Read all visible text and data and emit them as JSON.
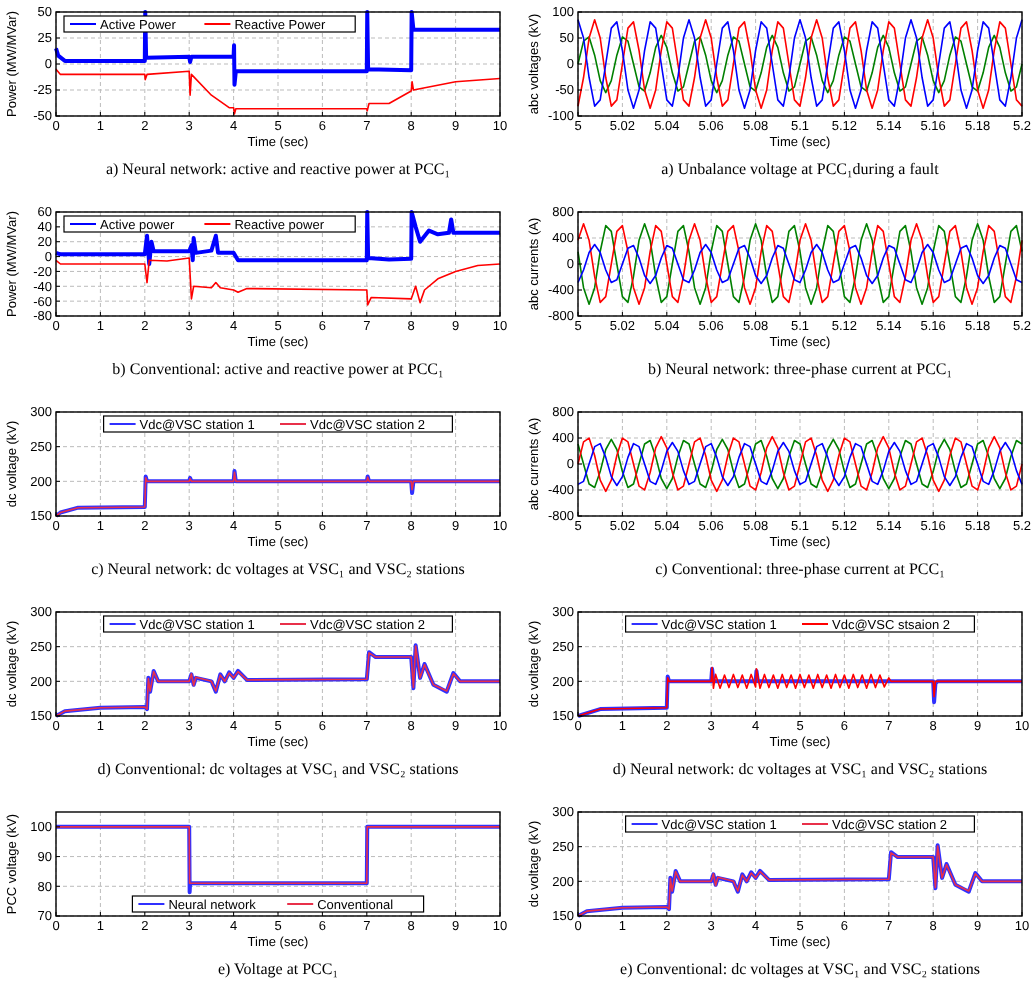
{
  "chart_data": [
    {
      "type": "line",
      "title": "a)    Neural network: active and reactive power at PCC₁",
      "xlabel": "Time (sec)",
      "ylabel": "Power (MW/MVar)",
      "xlim": [
        0,
        10
      ],
      "xticks": [
        0,
        1,
        2,
        3,
        4,
        5,
        6,
        7,
        8,
        9,
        10
      ],
      "ylim": [
        -50,
        50
      ],
      "yticks": [
        -50,
        -25,
        0,
        25,
        50
      ],
      "grid": true,
      "legend": "top left",
      "series": [
        {
          "name": "Active Power",
          "color": "#0000ff",
          "x": [
            0,
            0.05,
            0.2,
            2,
            2.01,
            2.03,
            3,
            3.02,
            3.05,
            4,
            4.01,
            4.02,
            4.05,
            7,
            7.01,
            7.03,
            8,
            8.01,
            8.05,
            10
          ],
          "values": [
            15,
            8,
            3,
            3,
            50,
            6,
            7,
            2,
            7,
            7,
            18,
            -20,
            -7,
            -7,
            50,
            -5,
            -6,
            50,
            33,
            33
          ]
        },
        {
          "name": "Reactive Power",
          "color": "#ff0000",
          "x": [
            0,
            0.1,
            2,
            2.01,
            2.05,
            3,
            3.02,
            3.05,
            3.5,
            3.9,
            4,
            4.02,
            4.05,
            7,
            7.01,
            7.05,
            7.5,
            8,
            8.02,
            8.05,
            9,
            10
          ],
          "values": [
            -5,
            -10,
            -10,
            -15,
            -10,
            -7,
            -30,
            -10,
            -30,
            -42,
            -42,
            -48,
            -43,
            -43,
            -45,
            -38,
            -38,
            -26,
            -17,
            -25,
            -17,
            -14
          ]
        }
      ]
    },
    {
      "type": "line",
      "title": "a)    Unbalance voltage at PCC₁during a fault",
      "xlabel": "Time (sec)",
      "ylabel": "abc voltages (kV)",
      "xlim": [
        5,
        5.2
      ],
      "xticks": [
        5,
        5.02,
        5.04,
        5.06,
        5.08,
        5.1,
        5.12,
        5.14,
        5.16,
        5.18,
        5.2
      ],
      "ylim": [
        -100,
        100
      ],
      "yticks": [
        -100,
        -50,
        0,
        50,
        100
      ],
      "grid": true,
      "x": [
        5,
        5.0025,
        5.005,
        5.0075,
        5.01,
        5.0125,
        5.015,
        5.0175,
        5.02,
        5.0225,
        5.025,
        5.0275,
        5.03,
        5.0325,
        5.035,
        5.0375,
        5.04,
        5.0425,
        5.045,
        5.0475,
        5.05,
        5.0525,
        5.055,
        5.0575,
        5.06,
        5.0625,
        5.065,
        5.0675,
        5.07,
        5.0725,
        5.075,
        5.0775,
        5.08,
        5.0825,
        5.085,
        5.0875,
        5.09,
        5.0925,
        5.095,
        5.0975,
        5.1,
        5.1025,
        5.105,
        5.1075,
        5.11,
        5.1125,
        5.115,
        5.1175,
        5.12,
        5.1225,
        5.125,
        5.1275,
        5.13,
        5.1325,
        5.135,
        5.1375,
        5.14,
        5.1425,
        5.145,
        5.1475,
        5.15,
        5.1525,
        5.155,
        5.1575,
        5.16,
        5.1625,
        5.165,
        5.1675,
        5.17,
        5.1725,
        5.175,
        5.1775,
        5.18,
        5.1825,
        5.185,
        5.1875,
        5.19,
        5.1925,
        5.195,
        5.1975,
        5.2
      ],
      "series": [
        {
          "color": "#008000",
          "values": [
            0,
            44,
            52,
            17,
            -32,
            -55,
            -32,
            17,
            52,
            44,
            0,
            -44,
            -52,
            -17,
            32,
            55,
            32,
            -17,
            -52,
            -44,
            0,
            44,
            52,
            17,
            -32,
            -55,
            -32,
            17,
            52,
            44,
            0,
            -44,
            -52,
            -17,
            32,
            55,
            32,
            -17,
            -52,
            -44,
            0,
            44,
            52,
            17,
            -32,
            -55,
            -32,
            17,
            52,
            44,
            0,
            -44,
            -52,
            -17,
            32,
            55,
            32,
            -17,
            -52,
            -44,
            0,
            44,
            52,
            17,
            -32,
            -55,
            -32,
            17,
            52,
            44,
            0,
            -44,
            -52,
            -17,
            32,
            55,
            32,
            -17,
            -52,
            -44,
            0
          ]
        },
        {
          "color": "#ff0000",
          "values": [
            -81,
            -26,
            50,
            85,
            50,
            -26,
            -81,
            -69,
            0,
            69,
            81,
            26,
            -50,
            -85,
            -50,
            26,
            81,
            69,
            0,
            -69,
            -81,
            -26,
            50,
            85,
            50,
            -26,
            -81,
            -69,
            0,
            69,
            81,
            26,
            -50,
            -85,
            -50,
            26,
            81,
            69,
            0,
            -69,
            -81,
            -26,
            50,
            85,
            50,
            -26,
            -81,
            -69,
            0,
            69,
            81,
            26,
            -50,
            -85,
            -50,
            26,
            81,
            69,
            0,
            -69,
            -81,
            -26,
            50,
            85,
            50,
            -26,
            -81,
            -69,
            0,
            69,
            81,
            26,
            -50,
            -85,
            -50,
            26,
            81,
            69,
            0,
            -69,
            -81
          ]
        },
        {
          "color": "#0000ff",
          "values": [
            85,
            50,
            -26,
            -81,
            -69,
            0,
            69,
            81,
            26,
            -50,
            -85,
            -50,
            26,
            81,
            69,
            0,
            -69,
            -81,
            -26,
            50,
            85,
            50,
            -26,
            -81,
            -69,
            0,
            69,
            81,
            26,
            -50,
            -85,
            -50,
            26,
            81,
            69,
            0,
            -69,
            -81,
            -26,
            50,
            85,
            50,
            -26,
            -81,
            -69,
            0,
            69,
            81,
            26,
            -50,
            -85,
            -50,
            26,
            81,
            69,
            0,
            -69,
            -81,
            -26,
            50,
            85,
            50,
            -26,
            -81,
            -69,
            0,
            69,
            81,
            26,
            -50,
            -85,
            -50,
            26,
            81,
            69,
            0,
            -69,
            -81,
            -26,
            50,
            85
          ]
        }
      ]
    },
    {
      "type": "line",
      "title": "b)    Conventional: active and reactive power at PCC₁",
      "xlabel": "Time (sec)",
      "ylabel": "Power (MW/MVar)",
      "xlim": [
        0,
        10
      ],
      "xticks": [
        0,
        1,
        2,
        3,
        4,
        5,
        6,
        7,
        8,
        9,
        10
      ],
      "ylim": [
        -80,
        60
      ],
      "yticks": [
        -80,
        -60,
        -40,
        -20,
        0,
        20,
        40,
        60
      ],
      "grid": true,
      "legend": "top left",
      "series": [
        {
          "name": "Active power",
          "color": "#0000ff",
          "x": [
            0,
            0.1,
            2,
            2.05,
            2.1,
            2.15,
            2.2,
            3,
            3.05,
            3.08,
            3.1,
            3.15,
            3.5,
            3.6,
            3.65,
            4,
            4.1,
            4.2,
            7,
            7.01,
            7.03,
            7.5,
            8,
            8.01,
            8.1,
            8.2,
            8.4,
            8.6,
            8.85,
            8.9,
            8.95,
            10
          ],
          "values": [
            5,
            3,
            3,
            28,
            -10,
            20,
            7,
            7,
            15,
            -5,
            25,
            5,
            8,
            28,
            5,
            5,
            -5,
            -5,
            -5,
            60,
            -2,
            -4,
            -3,
            60,
            40,
            20,
            35,
            30,
            32,
            50,
            32,
            32
          ]
        },
        {
          "name": "Reactive power",
          "color": "#ff0000",
          "x": [
            0,
            0.1,
            2,
            2.05,
            2.1,
            2.5,
            3,
            3.05,
            3.1,
            3.5,
            3.6,
            3.7,
            4,
            4.1,
            4.3,
            7,
            7.02,
            7.1,
            8,
            8.1,
            8.2,
            8.3,
            8.6,
            9,
            9.5,
            10
          ],
          "values": [
            -5,
            -10,
            -10,
            -35,
            -5,
            -6,
            -2,
            -57,
            -40,
            -42,
            -35,
            -42,
            -45,
            -48,
            -43,
            -45,
            -65,
            -55,
            -57,
            -40,
            -62,
            -45,
            -30,
            -20,
            -12,
            -10
          ]
        }
      ]
    },
    {
      "type": "line",
      "title": "b)    Neural network: three-phase current at PCC₁",
      "xlabel": "Time (sec)",
      "ylabel": "abc currents (A)",
      "xlim": [
        5,
        5.2
      ],
      "xticks": [
        5,
        5.02,
        5.04,
        5.06,
        5.08,
        5.1,
        5.12,
        5.14,
        5.16,
        5.18,
        5.2
      ],
      "ylim": [
        -800,
        800
      ],
      "yticks": [
        -800,
        -400,
        0,
        400,
        800
      ],
      "grid": true,
      "x": [
        5,
        5.0025,
        5.005,
        5.0075,
        5.01,
        5.0125,
        5.015,
        5.0175,
        5.02,
        5.0225,
        5.025,
        5.0275,
        5.03,
        5.0325,
        5.035,
        5.0375,
        5.04,
        5.0425,
        5.045,
        5.0475,
        5.05,
        5.0525,
        5.055,
        5.0575,
        5.06,
        5.0625,
        5.065,
        5.0675,
        5.07,
        5.0725,
        5.075,
        5.0775,
        5.08,
        5.0825,
        5.085,
        5.0875,
        5.09,
        5.0925,
        5.095,
        5.0975,
        5.1,
        5.1025,
        5.105,
        5.1075,
        5.11,
        5.1125,
        5.115,
        5.1175,
        5.12,
        5.1225,
        5.125,
        5.1275,
        5.13,
        5.1325,
        5.135,
        5.1375,
        5.14,
        5.1425,
        5.145,
        5.1475,
        5.15,
        5.1525,
        5.155,
        5.1575,
        5.16,
        5.1625,
        5.165,
        5.1675,
        5.17,
        5.1725,
        5.175,
        5.1775,
        5.18,
        5.1825,
        5.185,
        5.1875,
        5.19,
        5.1925,
        5.195,
        5.1975,
        5.2
      ],
      "series": [
        {
          "color": "#008000",
          "values": [
            192,
            -365,
            -620,
            -365,
            192,
            590,
            502,
            0,
            -502,
            -590,
            -192,
            365,
            620,
            365,
            -192,
            -590,
            -502,
            0,
            502,
            590,
            192,
            -365,
            -620,
            -365,
            192,
            590,
            502,
            0,
            -502,
            -590,
            -192,
            365,
            620,
            365,
            -192,
            -590,
            -502,
            0,
            502,
            590,
            192,
            -365,
            -620,
            -365,
            192,
            590,
            502,
            0,
            -502,
            -590,
            -192,
            365,
            620,
            365,
            -192,
            -590,
            -502,
            0,
            502,
            590,
            192,
            -365,
            -620,
            -365,
            192,
            590,
            502,
            0,
            -502,
            -590,
            -192,
            365,
            620,
            365,
            -192,
            -590,
            -502,
            0,
            502,
            590,
            192
          ]
        },
        {
          "color": "#ff0000",
          "values": [
            365,
            620,
            365,
            -192,
            -590,
            -502,
            0,
            502,
            590,
            192,
            -365,
            -620,
            -365,
            192,
            590,
            502,
            0,
            -502,
            -590,
            -192,
            365,
            620,
            365,
            -192,
            -590,
            -502,
            0,
            502,
            590,
            192,
            -365,
            -620,
            -365,
            192,
            590,
            502,
            0,
            -502,
            -590,
            -192,
            365,
            620,
            365,
            -192,
            -590,
            -502,
            0,
            502,
            590,
            192,
            -365,
            -620,
            -365,
            192,
            590,
            502,
            0,
            -502,
            -590,
            -192,
            365,
            620,
            365,
            -192,
            -590,
            -502,
            0,
            502,
            590,
            192,
            -365,
            -620,
            -365,
            192,
            590,
            502,
            0,
            -502,
            -590,
            -192,
            365
          ]
        },
        {
          "color": "#0000ff",
          "values": [
            -285,
            -93,
            176,
            300,
            176,
            -93,
            -285,
            -243,
            0,
            243,
            285,
            93,
            -176,
            -300,
            -176,
            93,
            285,
            243,
            0,
            -243,
            -285,
            -93,
            176,
            300,
            176,
            -93,
            -285,
            -243,
            0,
            243,
            285,
            93,
            -176,
            -300,
            -176,
            93,
            285,
            243,
            0,
            -243,
            -285,
            -93,
            176,
            300,
            176,
            -93,
            -285,
            -243,
            0,
            243,
            285,
            93,
            -176,
            -300,
            -176,
            93,
            285,
            243,
            0,
            -243,
            -285,
            -93,
            176,
            300,
            176,
            -93,
            -285,
            -243,
            0,
            243,
            285,
            93,
            -176,
            -300,
            -176,
            93,
            285,
            243,
            0,
            -243,
            -285
          ]
        }
      ]
    },
    {
      "type": "line",
      "title": "c)    Neural network: dc voltages at VSC₁ and VSC₂ stations",
      "xlabel": "Time (sec)",
      "ylabel": "dc voltage (kV)",
      "xlim": [
        0,
        10
      ],
      "xticks": [
        0,
        1,
        2,
        3,
        4,
        5,
        6,
        7,
        8,
        9,
        10
      ],
      "ylim": [
        150,
        300
      ],
      "yticks": [
        150,
        200,
        250,
        300
      ],
      "grid": true,
      "legend": "top",
      "series": [
        {
          "name": "Vdc@VSC station 1",
          "color": "#3030ff",
          "x": [
            0,
            0.1,
            0.5,
            2,
            2.02,
            2.05,
            3,
            3.02,
            3.05,
            4,
            4.02,
            4.05,
            7,
            7.02,
            7.05,
            8,
            8.02,
            8.05,
            10
          ],
          "values": [
            150,
            155,
            162,
            163,
            207,
            200,
            200,
            205,
            200,
            200,
            215,
            200,
            200,
            207,
            200,
            200,
            183,
            200,
            200
          ]
        },
        {
          "name": "Vdc@VSC station 2",
          "color": "#e8304a",
          "x": [
            0,
            0.1,
            0.5,
            2,
            2.02,
            2.05,
            3,
            3.02,
            3.05,
            4,
            4.02,
            4.05,
            7,
            7.02,
            7.05,
            8,
            8.02,
            8.05,
            10
          ],
          "values": [
            150,
            155,
            162,
            163,
            205,
            200,
            200,
            204,
            200,
            200,
            213,
            200,
            200,
            206,
            200,
            200,
            188,
            200,
            200
          ]
        }
      ]
    },
    {
      "type": "line",
      "title": "c)    Conventional: three-phase current at PCC₁",
      "xlabel": "Time (sec)",
      "ylabel": "abc currents (A)",
      "xlim": [
        5,
        5.2
      ],
      "xticks": [
        5,
        5.02,
        5.04,
        5.06,
        5.08,
        5.1,
        5.12,
        5.14,
        5.16,
        5.18,
        5.2
      ],
      "ylim": [
        -800,
        800
      ],
      "yticks": [
        -800,
        -400,
        0,
        400,
        800
      ],
      "grid": true,
      "x": [
        5,
        5.0025,
        5.005,
        5.0075,
        5.01,
        5.0125,
        5.015,
        5.0175,
        5.02,
        5.0225,
        5.025,
        5.0275,
        5.03,
        5.0325,
        5.035,
        5.0375,
        5.04,
        5.0425,
        5.045,
        5.0475,
        5.05,
        5.0525,
        5.055,
        5.0575,
        5.06,
        5.0625,
        5.065,
        5.0675,
        5.07,
        5.0725,
        5.075,
        5.0775,
        5.08,
        5.0825,
        5.085,
        5.0875,
        5.09,
        5.0925,
        5.095,
        5.0975,
        5.1,
        5.1025,
        5.105,
        5.1075,
        5.11,
        5.1125,
        5.115,
        5.1175,
        5.12,
        5.1225,
        5.125,
        5.1275,
        5.13,
        5.1325,
        5.135,
        5.1375,
        5.14,
        5.1425,
        5.145,
        5.1475,
        5.15,
        5.1525,
        5.155,
        5.1575,
        5.16,
        5.1625,
        5.165,
        5.1675,
        5.17,
        5.1725,
        5.175,
        5.1775,
        5.18,
        5.1825,
        5.185,
        5.1875,
        5.19,
        5.1925,
        5.195,
        5.1975,
        5.2
      ],
      "series": [
        {
          "color": "#008000",
          "values": [
            307,
            0,
            -307,
            -361,
            -117,
            223,
            380,
            223,
            -117,
            -361,
            -307,
            0,
            307,
            361,
            117,
            -223,
            -380,
            -223,
            117,
            361,
            307,
            0,
            -307,
            -361,
            -117,
            223,
            380,
            223,
            -117,
            -361,
            -307,
            0,
            307,
            361,
            117,
            -223,
            -380,
            -223,
            117,
            361,
            307,
            0,
            -307,
            -361,
            -117,
            223,
            380,
            223,
            -117,
            -361,
            -307,
            0,
            307,
            361,
            117,
            -223,
            -380,
            -223,
            117,
            361,
            307,
            0,
            -307,
            -361,
            -117,
            223,
            380,
            223,
            -117,
            -361,
            -307,
            0,
            307,
            361,
            117,
            -223,
            -380,
            -223,
            117,
            361,
            307
          ]
        },
        {
          "color": "#ff0000",
          "values": [
            0,
            340,
            399,
            130,
            -247,
            -420,
            -247,
            130,
            399,
            340,
            0,
            -340,
            -399,
            -130,
            247,
            420,
            247,
            -130,
            -399,
            -340,
            0,
            340,
            399,
            130,
            -247,
            -420,
            -247,
            130,
            399,
            340,
            0,
            -340,
            -399,
            -130,
            247,
            420,
            247,
            -130,
            -399,
            -340,
            0,
            340,
            399,
            130,
            -247,
            -420,
            -247,
            130,
            399,
            340,
            0,
            -340,
            -399,
            -130,
            247,
            420,
            247,
            -130,
            -399,
            -340,
            0,
            340,
            399,
            130,
            -247,
            -420,
            -247,
            130,
            399,
            340,
            0,
            -340,
            -399,
            -130,
            247,
            420,
            247,
            -130,
            -399,
            -340,
            0
          ]
        },
        {
          "color": "#0000ff",
          "values": [
            -314,
            -267,
            0,
            267,
            314,
            102,
            -194,
            -330,
            -194,
            102,
            314,
            267,
            0,
            -267,
            -314,
            -102,
            194,
            330,
            194,
            -102,
            -314,
            -267,
            0,
            267,
            314,
            102,
            -194,
            -330,
            -194,
            102,
            314,
            267,
            0,
            -267,
            -314,
            -102,
            194,
            330,
            194,
            -102,
            -314,
            -267,
            0,
            267,
            314,
            102,
            -194,
            -330,
            -194,
            102,
            314,
            267,
            0,
            -267,
            -314,
            -102,
            194,
            330,
            194,
            -102,
            -314,
            -267,
            0,
            267,
            314,
            102,
            -194,
            -330,
            -194,
            102,
            314,
            267,
            0,
            -267,
            -314,
            -102,
            194,
            330,
            194,
            -102,
            -314
          ]
        }
      ]
    },
    {
      "type": "line",
      "title": "d)    Conventional: dc voltages at VSC₁ and VSC₂ stations",
      "xlabel": "Time (sec)",
      "ylabel": "dc voltage (kV)",
      "xlim": [
        0,
        10
      ],
      "xticks": [
        0,
        1,
        2,
        3,
        4,
        5,
        6,
        7,
        8,
        9,
        10
      ],
      "ylim": [
        150,
        300
      ],
      "yticks": [
        150,
        200,
        250,
        300
      ],
      "grid": true,
      "legend": "top",
      "series": [
        {
          "name": "Vdc@VSC station 1",
          "color": "#3030ff",
          "x": [
            0,
            0.2,
            1,
            2,
            2.05,
            2.08,
            2.12,
            2.2,
            2.3,
            3,
            3.05,
            3.1,
            3.15,
            3.5,
            3.6,
            3.7,
            3.8,
            3.9,
            4,
            4.1,
            4.3,
            7,
            7.05,
            7.2,
            8,
            8.05,
            8.1,
            8.2,
            8.3,
            8.5,
            8.8,
            8.95,
            9.1,
            10
          ],
          "values": [
            150,
            157,
            162,
            163,
            160,
            205,
            185,
            215,
            200,
            200,
            210,
            195,
            205,
            200,
            185,
            210,
            200,
            213,
            205,
            215,
            202,
            203,
            242,
            235,
            235,
            190,
            252,
            205,
            225,
            195,
            185,
            212,
            200,
            200
          ]
        },
        {
          "name": "Vdc@VSC station 2",
          "color": "#e8304a",
          "x": [
            0,
            0.2,
            1,
            2,
            2.05,
            2.08,
            2.12,
            2.2,
            2.3,
            3,
            3.05,
            3.1,
            3.15,
            3.5,
            3.6,
            3.7,
            3.8,
            3.9,
            4,
            4.1,
            4.3,
            7,
            7.05,
            7.2,
            8,
            8.05,
            8.1,
            8.2,
            8.3,
            8.5,
            8.8,
            8.95,
            9.1,
            10
          ],
          "values": [
            150,
            157,
            162,
            163,
            160,
            204,
            186,
            214,
            200,
            200,
            211,
            194,
            206,
            200,
            186,
            209,
            200,
            212,
            205,
            214,
            202,
            203,
            241,
            235,
            235,
            191,
            251,
            205,
            224,
            195,
            186,
            211,
            200,
            200
          ]
        }
      ]
    },
    {
      "type": "line",
      "title": "d)    Neural network: dc voltages at VSC₁ and VSC₂ stations",
      "xlabel": "Time (sec)",
      "ylabel": "dc voltage (kV)",
      "xlim": [
        0,
        10
      ],
      "xticks": [
        0,
        1,
        2,
        3,
        4,
        5,
        6,
        7,
        8,
        9,
        10
      ],
      "ylim": [
        150,
        300
      ],
      "yticks": [
        150,
        200,
        250,
        300
      ],
      "grid": true,
      "legend": "top",
      "series": [
        {
          "name": "Vdc@VSC station 1",
          "color": "#3030ff",
          "x": [
            0,
            0.5,
            2,
            2.02,
            2.05,
            3,
            3.02,
            3.05,
            4,
            4.02,
            4.05,
            7,
            8,
            8.02,
            8.05,
            8.1,
            10
          ],
          "values": [
            150,
            160,
            162,
            207,
            200,
            200,
            218,
            200,
            200,
            215,
            200,
            200,
            200,
            170,
            197,
            200,
            200
          ]
        },
        {
          "name": "Vdc@VSC stsaion 2",
          "color": "#ff0000",
          "x": [
            0,
            0.5,
            2,
            2.02,
            2.05,
            3,
            3.02,
            3.05,
            3.1,
            3.2,
            3.3,
            3.4,
            3.5,
            3.6,
            3.7,
            3.8,
            3.9,
            4,
            4.02,
            4.1,
            4.2,
            4.3,
            4.4,
            4.5,
            4.6,
            4.7,
            4.8,
            4.9,
            5,
            5.1,
            5.2,
            5.3,
            5.4,
            5.5,
            5.6,
            5.7,
            5.8,
            5.9,
            6,
            6.1,
            6.2,
            6.3,
            6.4,
            6.5,
            6.6,
            6.7,
            6.8,
            6.9,
            7,
            7.05,
            8,
            8.02,
            8.05,
            10
          ],
          "values": [
            150,
            160,
            162,
            205,
            200,
            200,
            220,
            190,
            210,
            190,
            209,
            191,
            210,
            191,
            209,
            190,
            210,
            192,
            218,
            190,
            210,
            191,
            209,
            190,
            210,
            191,
            209,
            190,
            210,
            191,
            209,
            190,
            210,
            191,
            209,
            190,
            210,
            191,
            209,
            190,
            210,
            191,
            209,
            190,
            210,
            191,
            209,
            192,
            205,
            200,
            200,
            178,
            200,
            200
          ]
        }
      ]
    },
    {
      "type": "line",
      "title": "e)    Voltage at PCC₁",
      "xlabel": "Time (sec)",
      "ylabel": "PCC voltage (kV)",
      "xlim": [
        0,
        10
      ],
      "xticks": [
        0,
        1,
        2,
        3,
        4,
        5,
        6,
        7,
        8,
        9,
        10
      ],
      "ylim": [
        70,
        105
      ],
      "yticks": [
        70,
        80,
        90,
        100
      ],
      "grid": true,
      "legend": "bottom",
      "series": [
        {
          "name": "Neural network",
          "color": "#3030ff",
          "x": [
            0,
            3,
            3.01,
            3.02,
            7,
            7.01,
            10
          ],
          "values": [
            100,
            100,
            78,
            81,
            81,
            100,
            100
          ]
        },
        {
          "name": "Conventional",
          "color": "#e8304a",
          "x": [
            0,
            3,
            3.01,
            7,
            7.01,
            10
          ],
          "values": [
            100,
            100,
            81,
            81,
            100,
            100
          ]
        }
      ]
    },
    {
      "type": "line",
      "title": "e)    Conventional: dc voltages at VSC₁ and VSC₂ stations",
      "xlabel": "Time (sec)",
      "ylabel": "dc voltage (kV)",
      "xlim": [
        0,
        10
      ],
      "xticks": [
        0,
        1,
        2,
        3,
        4,
        5,
        6,
        7,
        8,
        9,
        10
      ],
      "ylim": [
        150,
        300
      ],
      "yticks": [
        150,
        200,
        250,
        300
      ],
      "grid": true,
      "legend": "top",
      "series": [
        {
          "name": "Vdc@VSC station 1",
          "color": "#3030ff",
          "x": [
            0,
            0.2,
            1,
            2,
            2.05,
            2.08,
            2.12,
            2.2,
            2.3,
            3,
            3.05,
            3.1,
            3.15,
            3.5,
            3.6,
            3.7,
            3.8,
            3.9,
            4,
            4.1,
            4.3,
            7,
            7.05,
            7.2,
            8,
            8.05,
            8.1,
            8.2,
            8.3,
            8.5,
            8.8,
            8.95,
            9.1,
            10
          ],
          "values": [
            150,
            157,
            162,
            163,
            160,
            205,
            185,
            215,
            200,
            200,
            210,
            195,
            205,
            200,
            185,
            210,
            200,
            213,
            205,
            215,
            202,
            203,
            242,
            235,
            235,
            190,
            252,
            205,
            225,
            195,
            185,
            212,
            200,
            200
          ]
        },
        {
          "name": "Vdc@VSC station 2",
          "color": "#e8304a",
          "x": [
            0,
            0.2,
            1,
            2,
            2.05,
            2.08,
            2.12,
            2.2,
            2.3,
            3,
            3.05,
            3.1,
            3.15,
            3.5,
            3.6,
            3.7,
            3.8,
            3.9,
            4,
            4.1,
            4.3,
            7,
            7.05,
            7.2,
            8,
            8.05,
            8.1,
            8.2,
            8.3,
            8.5,
            8.8,
            8.95,
            9.1,
            10
          ],
          "values": [
            150,
            157,
            162,
            163,
            160,
            204,
            186,
            214,
            200,
            200,
            211,
            194,
            206,
            200,
            186,
            209,
            200,
            212,
            205,
            214,
            202,
            203,
            241,
            235,
            235,
            191,
            251,
            205,
            224,
            195,
            186,
            211,
            200,
            200
          ]
        }
      ]
    }
  ]
}
